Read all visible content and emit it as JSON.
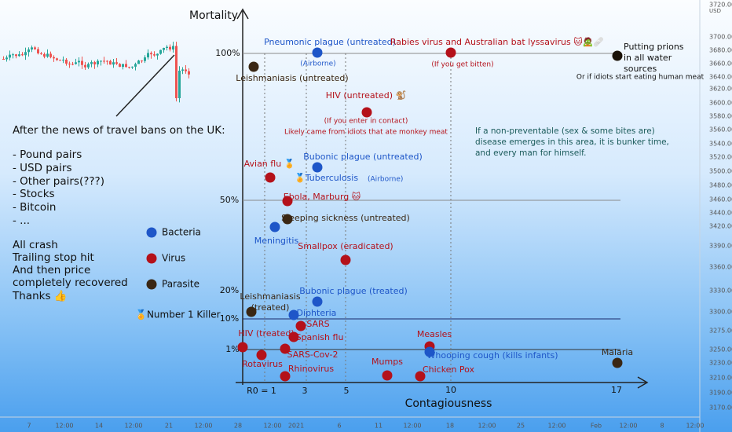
{
  "price_axis": {
    "currency": "USD",
    "labels": [
      "3720.00",
      "3700.00",
      "3680.00",
      "3660.00",
      "3640.00",
      "3620.00",
      "3600.00",
      "3580.00",
      "3560.00",
      "3540.00",
      "3520.00",
      "3500.00",
      "3480.00",
      "3460.00",
      "3440.00",
      "3420.00",
      "3390.00",
      "3360.00",
      "3330.00",
      "3300.00",
      "3275.00",
      "3250.00",
      "3230.00",
      "3210.00",
      "3190.00",
      "3170.00"
    ]
  },
  "time_axis": {
    "labels": [
      "7",
      "12:00",
      "14",
      "12:00",
      "21",
      "12:00",
      "28",
      "12:00",
      "2021",
      "6",
      "11",
      "12:00",
      "18",
      "12:00",
      "25",
      "12:00",
      "Feb",
      "12:00",
      "8",
      "12:00"
    ]
  },
  "post": {
    "lines": [
      "After the news of travel bans on the UK:",
      "- Pound pairs",
      "- USD pairs",
      "- Other pairs(???)",
      "- Stocks",
      "- Bitcoin",
      "- ...",
      "All crash",
      "Trailing stop hit",
      "And then price",
      "completely recovered",
      "Thanks 👍"
    ]
  },
  "legend": [
    {
      "label": "Bacteria",
      "color": "#1e56c8"
    },
    {
      "label": "Virus",
      "color": "#b4111a"
    },
    {
      "label": "Parasite",
      "color": "#3a2714"
    },
    {
      "label": "🏅Number 1 Killer"
    }
  ],
  "chart": {
    "y_title": "Mortality",
    "x_title": "Contagiousness",
    "y_labels": [
      "100%",
      "50%",
      "20%",
      "10%",
      "1%"
    ],
    "x_labels": [
      "R0 = 1",
      "3",
      "5",
      "10",
      "17"
    ],
    "note": [
      "If a non-preventable (sex & some bites are)",
      "disease emerges in this area, it is bunker time,",
      "and every man for himself."
    ],
    "points": [
      {
        "label": [
          "Pneumonic plague (untreated)"
        ],
        "notes": [
          "(Airborne)"
        ],
        "color": "#1e56c8"
      },
      {
        "label": [
          "Rabies virus and Australian bat lyssavirus 🐱🧟🩹"
        ],
        "notes": [
          "(If you get bitten)"
        ],
        "color": "#b4111a"
      },
      {
        "label": [
          "Putting prions",
          "in all water",
          "sources"
        ],
        "notes": [
          "Or if idiots start eating human meat"
        ],
        "color": "#111111"
      },
      {
        "label": [
          "Leishmaniasis (untreated)"
        ],
        "color": "#3a2714"
      },
      {
        "label": [
          "HIV (untreated) 🐒"
        ],
        "notes": [
          "(If you enter in contact)",
          "Likely came from idiots that ate monkey meat"
        ],
        "color": "#b4111a"
      },
      {
        "label": [
          "Avian flu 🏅"
        ],
        "color": "#b4111a"
      },
      {
        "label": [
          "Bubonic plague (untreated)"
        ],
        "color": "#1e56c8"
      },
      {
        "label": [
          "🏅Tuberculosis"
        ],
        "notes": [
          "(Airborne)"
        ],
        "color": "#1e56c8"
      },
      {
        "label": [
          "Ebola, Marburg 🐱"
        ],
        "color": "#b4111a"
      },
      {
        "label": [
          "Sleeping sickness (untreated)"
        ],
        "color": "#3a2714"
      },
      {
        "label": [
          "Meningitis"
        ],
        "color": "#1e56c8"
      },
      {
        "label": [
          "Smallpox (eradicated)"
        ],
        "color": "#b4111a"
      },
      {
        "label": [
          "Bubonic plague (treated)"
        ],
        "color": "#1e56c8"
      },
      {
        "label": [
          "Leishmaniasis",
          "(treated)"
        ],
        "color": "#3a2714"
      },
      {
        "label": [
          "Diphteria"
        ],
        "color": "#1e56c8"
      },
      {
        "label": [
          "SARS"
        ],
        "color": "#b4111a"
      },
      {
        "label": [
          "Spanish flu"
        ],
        "color": "#b4111a"
      },
      {
        "label": [
          "HIV (treated)"
        ],
        "color": "#b4111a"
      },
      {
        "label": [
          "SARS-Cov-2"
        ],
        "color": "#b4111a"
      },
      {
        "label": [
          "Rotavirus"
        ],
        "color": "#b4111a"
      },
      {
        "label": [
          "Rhinovirus"
        ],
        "color": "#b4111a"
      },
      {
        "label": [
          "Mumps"
        ],
        "color": "#b4111a"
      },
      {
        "label": [
          "Chicken Pox"
        ],
        "color": "#b4111a"
      },
      {
        "label": [
          "Measles"
        ],
        "color": "#b4111a"
      },
      {
        "label": [
          "Whooping cough (kills infants)"
        ],
        "color": "#1e56c8"
      },
      {
        "label": [
          "Malaria"
        ],
        "color": "#3a2714"
      }
    ]
  }
}
